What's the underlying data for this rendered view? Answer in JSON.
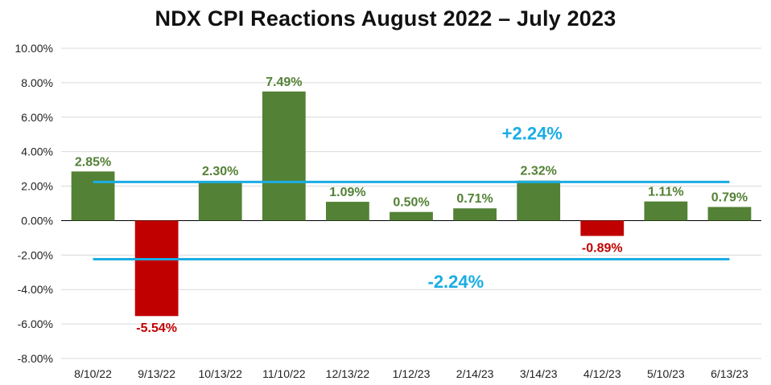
{
  "chart_data": {
    "type": "bar",
    "title": "NDX CPI Reactions August 2022 – July 2023",
    "xlabel": "",
    "ylabel": "",
    "ylim": [
      -8,
      10
    ],
    "y_ticks": [
      "10.00%",
      "8.00%",
      "6.00%",
      "4.00%",
      "2.00%",
      "0.00%",
      "-2.00%",
      "-4.00%",
      "-6.00%",
      "-8.00%"
    ],
    "categories": [
      "8/10/22",
      "9/13/22",
      "10/13/22",
      "11/10/22",
      "12/13/22",
      "1/12/23",
      "2/14/23",
      "3/14/23",
      "4/12/23",
      "5/10/23",
      "6/13/23"
    ],
    "values": [
      2.85,
      -5.54,
      2.3,
      7.49,
      1.09,
      0.5,
      0.71,
      2.32,
      -0.89,
      1.11,
      0.79
    ],
    "data_labels": [
      "2.85%",
      "-5.54%",
      "2.30%",
      "7.49%",
      "1.09%",
      "0.50%",
      "0.71%",
      "2.32%",
      "-0.89%",
      "1.11%",
      "0.79%"
    ],
    "reference_lines": [
      {
        "value": 2.24,
        "label": "+2.24%"
      },
      {
        "value": -2.24,
        "label": "-2.24%"
      }
    ],
    "grid": true,
    "colors": {
      "positive": "#538135",
      "negative": "#C00000",
      "reference": "#1AADE4",
      "grid": "#D9D9D9"
    }
  }
}
